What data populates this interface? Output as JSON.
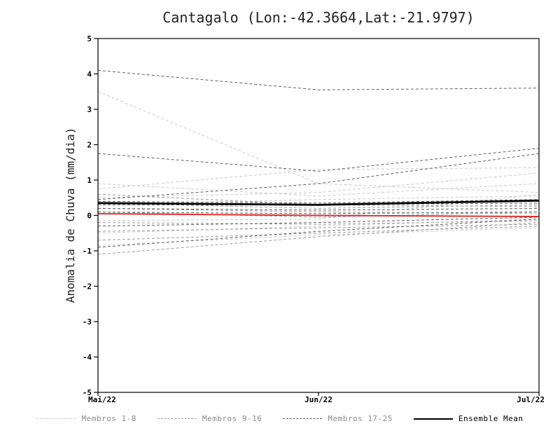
{
  "page": {
    "background": "#ffffff"
  },
  "chart_data": {
    "type": "line",
    "title": "Cantagalo (Lon:-42.3664,Lat:-21.9797)",
    "ylabel": "Anomalia de Chuva (mm/dia)",
    "xlabel": "",
    "x_ticks": [
      "Mai/22",
      "Jun/22",
      "Jul/22"
    ],
    "ylim": [
      -5,
      5
    ],
    "ytick_step": 1,
    "grid": false,
    "legend_position": "bottom",
    "colors": {
      "member_group_1": "#c9c9c9",
      "member_group_2": "#9b9b9b",
      "member_group_3": "#5f5f5f",
      "ensemble_mean": "#000000",
      "red_line": "#e03130"
    },
    "legend": [
      {
        "label": "Membros 1-8",
        "group": "member_group_1",
        "style": "dashed"
      },
      {
        "label": "Membros 9-16",
        "group": "member_group_2",
        "style": "dashed"
      },
      {
        "label": "Membros 17-25",
        "group": "member_group_3",
        "style": "dashed"
      },
      {
        "label": "Ensemble Mean",
        "group": "ensemble_mean",
        "style": "solid"
      }
    ],
    "series": [
      {
        "name": "Membro 1",
        "group": "member_group_1",
        "style": "dashed",
        "values": [
          3.5,
          0.9,
          0.65
        ]
      },
      {
        "name": "Membro 2",
        "group": "member_group_1",
        "style": "dashed",
        "values": [
          0.9,
          0.55,
          0.9
        ]
      },
      {
        "name": "Membro 3",
        "group": "member_group_1",
        "style": "dashed",
        "values": [
          0.75,
          1.3,
          1.35
        ]
      },
      {
        "name": "Membro 4",
        "group": "member_group_1",
        "style": "dashed",
        "values": [
          0.5,
          0.65,
          1.2
        ]
      },
      {
        "name": "Membro 5",
        "group": "member_group_1",
        "style": "dashed",
        "values": [
          0.3,
          0.45,
          0.55
        ]
      },
      {
        "name": "Membro 6",
        "group": "member_group_1",
        "style": "dashed",
        "values": [
          -0.15,
          -0.1,
          0.6
        ]
      },
      {
        "name": "Membro 7",
        "group": "member_group_1",
        "style": "dashed",
        "values": [
          -0.5,
          -0.3,
          -0.1
        ]
      },
      {
        "name": "Membro 8",
        "group": "member_group_1",
        "style": "dashed",
        "values": [
          -0.85,
          -0.55,
          -0.35
        ]
      },
      {
        "name": "Membro 9",
        "group": "member_group_2",
        "style": "dashed",
        "values": [
          0.6,
          0.3,
          0.25
        ]
      },
      {
        "name": "Membro 10",
        "group": "member_group_2",
        "style": "dashed",
        "values": [
          0.35,
          0.2,
          0.3
        ]
      },
      {
        "name": "Membro 11",
        "group": "member_group_2",
        "style": "dashed",
        "values": [
          0.2,
          0.1,
          0.05
        ]
      },
      {
        "name": "Membro 12",
        "group": "member_group_2",
        "style": "dashed",
        "values": [
          0.1,
          -0.05,
          0.1
        ]
      },
      {
        "name": "Membro 13",
        "group": "member_group_2",
        "style": "dashed",
        "values": [
          -0.2,
          -0.25,
          -0.15
        ]
      },
      {
        "name": "Membro 14",
        "group": "member_group_2",
        "style": "dashed",
        "values": [
          -0.45,
          -0.35,
          -0.25
        ]
      },
      {
        "name": "Membro 15",
        "group": "member_group_2",
        "style": "dashed",
        "values": [
          -0.7,
          -0.5,
          -0.3
        ]
      },
      {
        "name": "Membro 16",
        "group": "member_group_2",
        "style": "dashed",
        "values": [
          -1.1,
          -0.6,
          -0.2
        ]
      },
      {
        "name": "Membro 17",
        "group": "member_group_3",
        "style": "dashed",
        "values": [
          4.1,
          3.55,
          3.6
        ]
      },
      {
        "name": "Membro 18",
        "group": "member_group_3",
        "style": "dashed",
        "values": [
          1.75,
          1.25,
          1.9
        ]
      },
      {
        "name": "Membro 19",
        "group": "member_group_3",
        "style": "dashed",
        "values": [
          0.45,
          0.9,
          1.75
        ]
      },
      {
        "name": "Membro 20",
        "group": "member_group_3",
        "style": "dashed",
        "values": [
          0.4,
          0.35,
          0.45
        ]
      },
      {
        "name": "Membro 21",
        "group": "member_group_3",
        "style": "dashed",
        "values": [
          0.3,
          0.3,
          0.35
        ]
      },
      {
        "name": "Membro 22",
        "group": "member_group_3",
        "style": "dashed",
        "values": [
          0.2,
          0.15,
          0.2
        ]
      },
      {
        "name": "Membro 23",
        "group": "member_group_3",
        "style": "dashed",
        "values": [
          0.1,
          0.05,
          0.1
        ]
      },
      {
        "name": "Membro 24",
        "group": "member_group_3",
        "style": "dashed",
        "values": [
          -0.3,
          -0.2,
          -0.05
        ]
      },
      {
        "name": "Membro 25",
        "group": "member_group_3",
        "style": "dashed",
        "values": [
          -0.9,
          -0.45,
          -0.1
        ]
      },
      {
        "name": "red_line",
        "group": "red_line",
        "style": "solid",
        "width": 2,
        "values": [
          0.05,
          0.0,
          -0.03
        ]
      },
      {
        "name": "Ensemble Mean",
        "group": "ensemble_mean",
        "style": "solid",
        "width": 2.8,
        "values": [
          0.35,
          0.3,
          0.42
        ]
      }
    ]
  }
}
